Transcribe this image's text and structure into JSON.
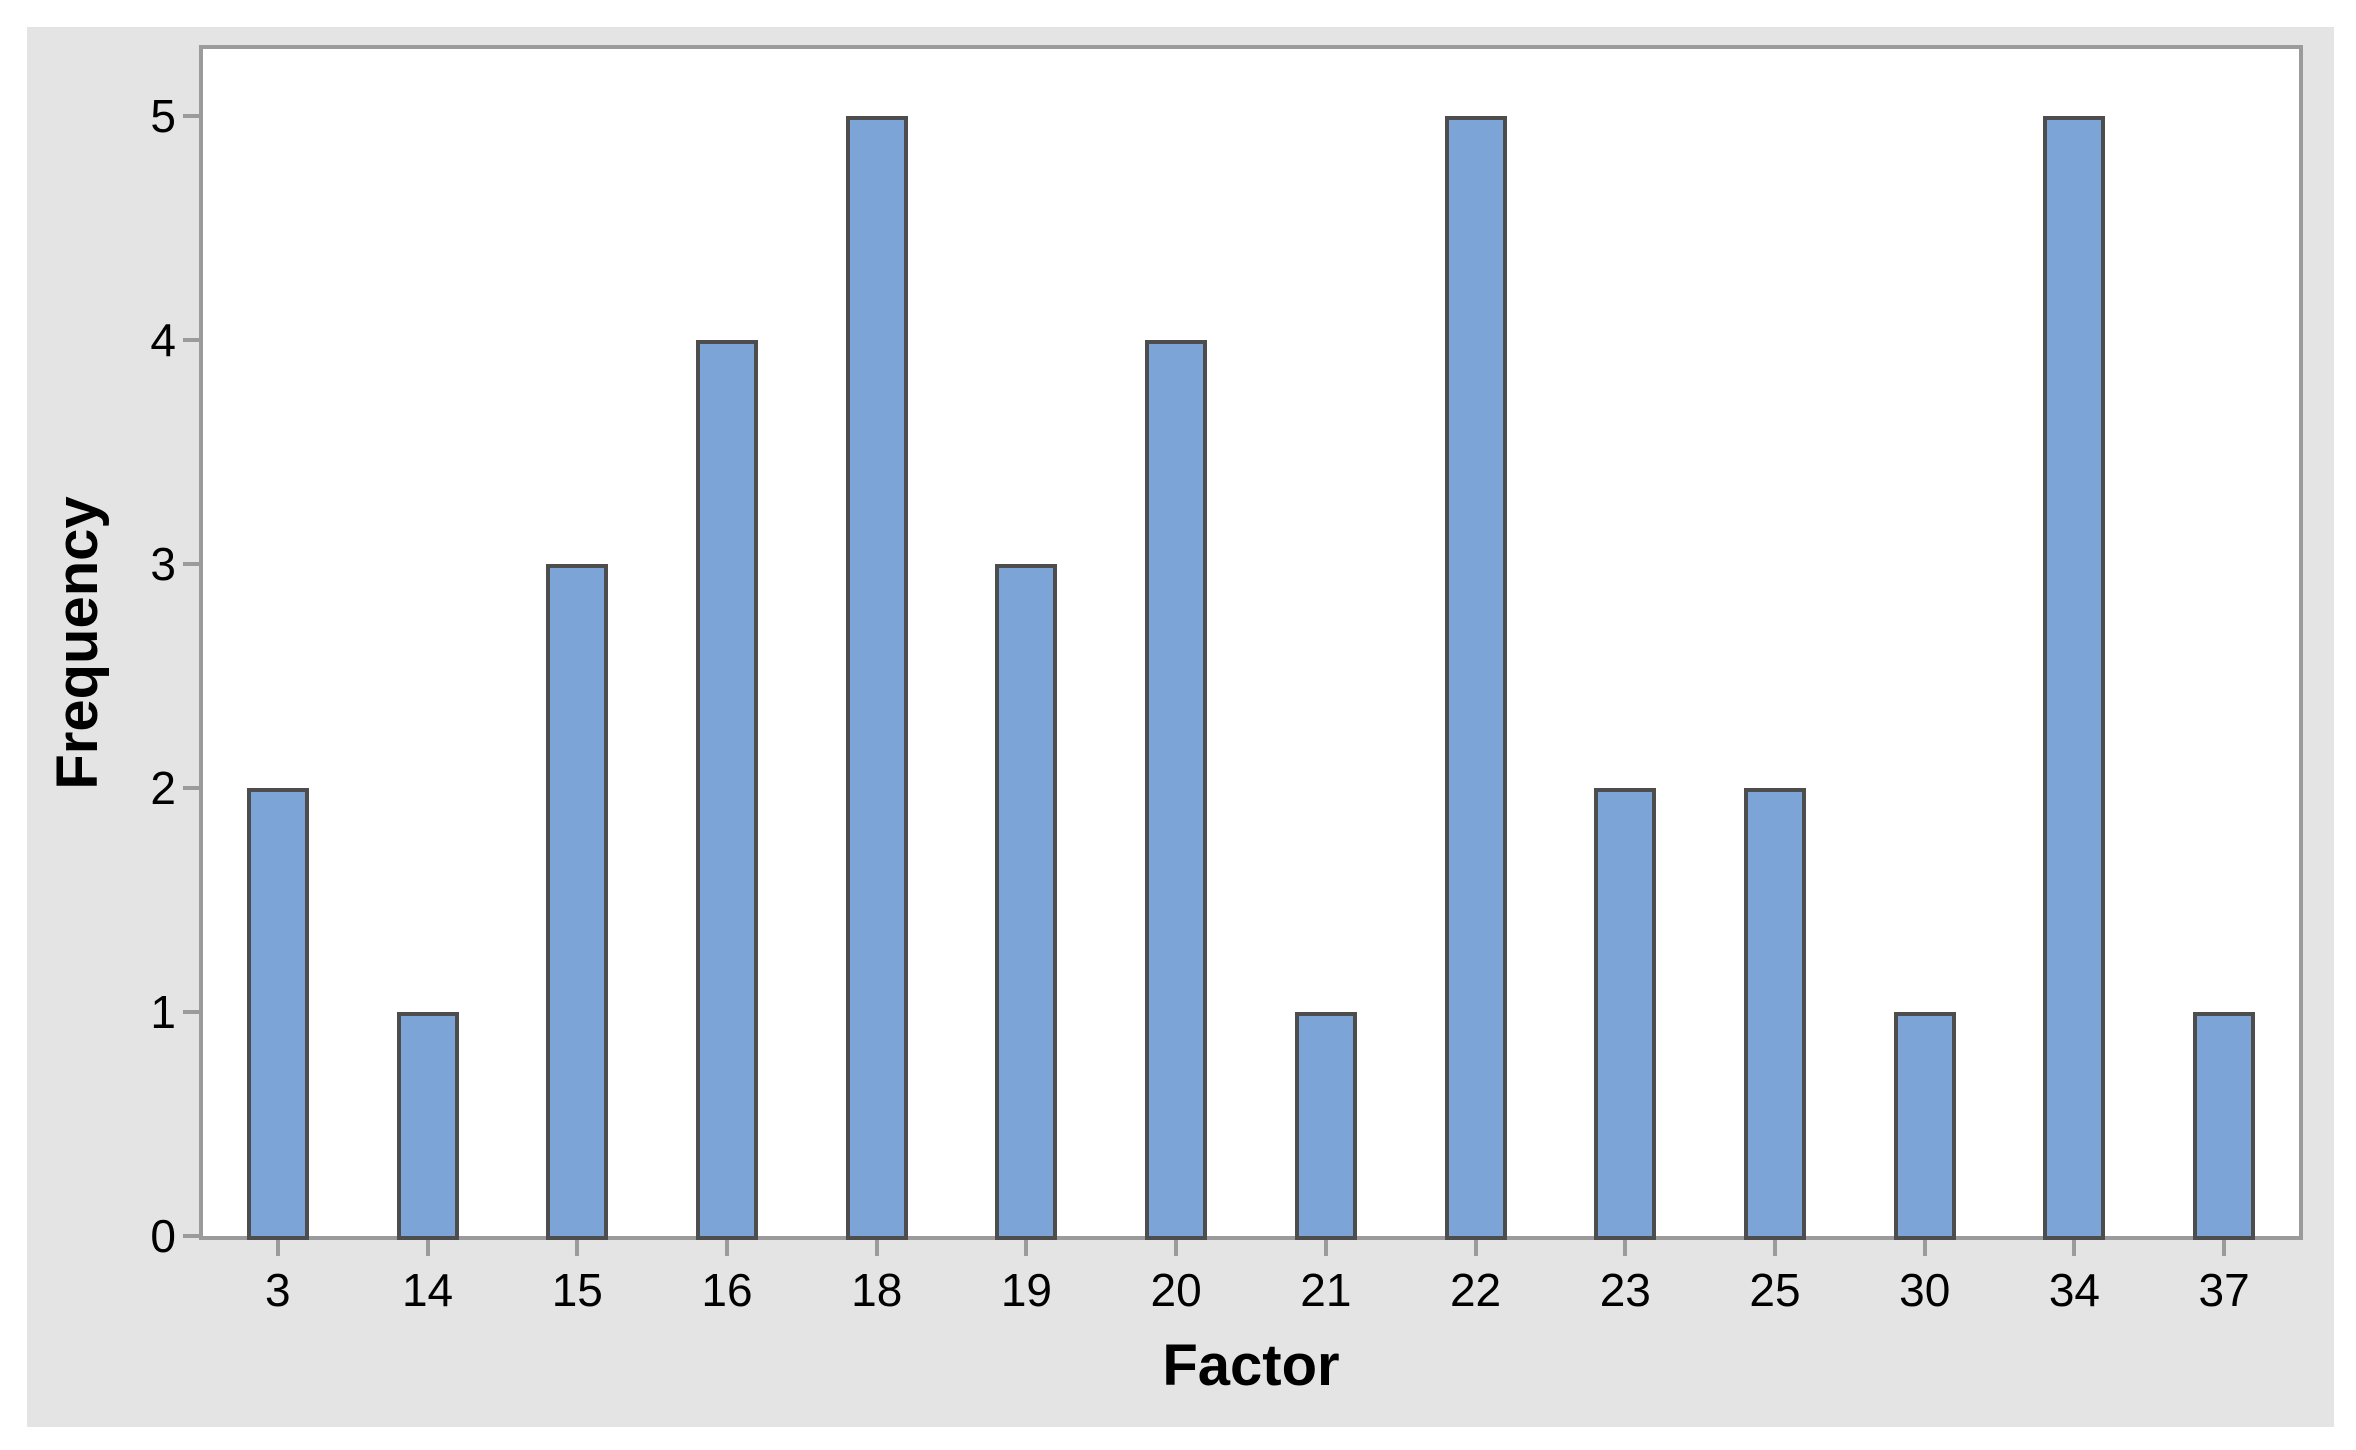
{
  "chart_data": {
    "type": "bar",
    "title": "",
    "xlabel": "Factor",
    "ylabel": "Frequency",
    "categories": [
      "3",
      "14",
      "15",
      "16",
      "18",
      "19",
      "20",
      "21",
      "22",
      "23",
      "25",
      "30",
      "34",
      "37"
    ],
    "values": [
      2,
      1,
      3,
      4,
      5,
      3,
      4,
      1,
      5,
      2,
      2,
      1,
      5,
      1
    ],
    "yticks": [
      0,
      1,
      2,
      3,
      4,
      5
    ],
    "ylim": [
      0,
      5.3
    ],
    "grid": false,
    "legend_position": "none",
    "colors": {
      "bar_fill": "#7ca4d7",
      "bar_stroke": "#4d4d4d",
      "axis_color": "#9b9b9b",
      "panel_bg": "#e5e4e4",
      "plot_bg": "#ffffff",
      "text_color": "#000000"
    }
  }
}
